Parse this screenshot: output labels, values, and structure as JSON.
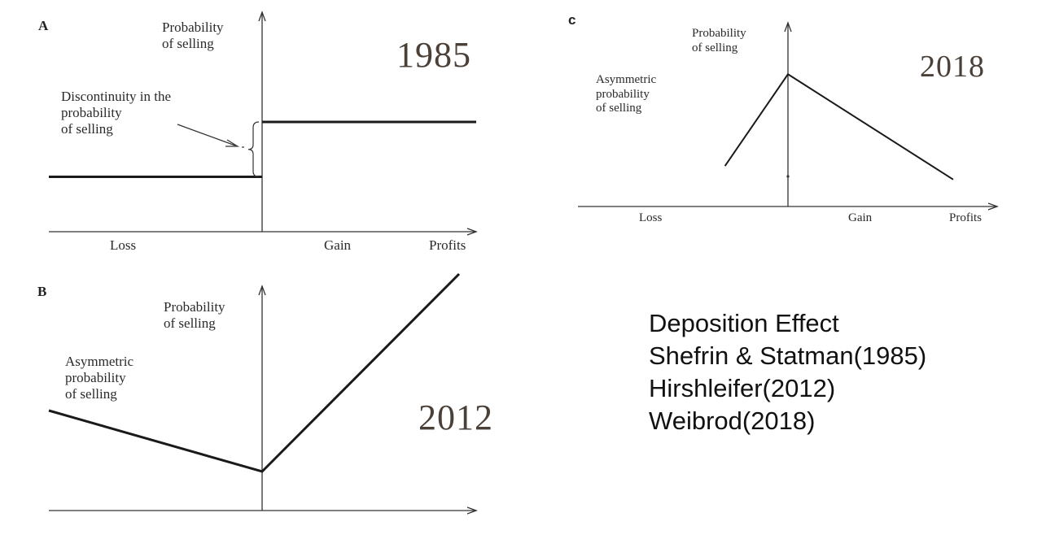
{
  "chart_data": [
    {
      "panel": "A",
      "type": "line",
      "year": "1985",
      "ylabel": "Probability\nof selling",
      "xlabel_left": "Loss",
      "xlabel_mid": "Gain",
      "xlabel_right": "Profits",
      "annotation": "Discontinuity in the\nprobability\nof selling",
      "series": [
        {
          "x": [
            -1,
            0
          ],
          "y": [
            0.3,
            0.3
          ]
        },
        {
          "x": [
            0,
            1
          ],
          "y": [
            0.6,
            0.6
          ]
        }
      ],
      "xlim": [
        -1,
        1
      ],
      "ylim": [
        0,
        1
      ],
      "grid": false,
      "ticks": false
    },
    {
      "panel": "B",
      "type": "line",
      "year": "2012",
      "ylabel": "Probability\nof selling",
      "annotation": "Asymmetric\nprobability\nof selling",
      "series": [
        {
          "x": [
            -1,
            0,
            0.92
          ],
          "y": [
            0.41,
            0.16,
            0.97
          ]
        }
      ],
      "xlim": [
        -1,
        1
      ],
      "ylim": [
        0,
        1
      ],
      "grid": false,
      "ticks": false
    },
    {
      "panel": "C",
      "type": "line",
      "year": "2018",
      "ylabel": "Probability\nof selling",
      "xlabel_left": "Loss",
      "xlabel_mid": "Gain",
      "xlabel_right": "Profits",
      "annotation": "Asymmetric\nprobability\nof selling",
      "series": [
        {
          "x": [
            -0.3,
            0,
            0.79
          ],
          "y": [
            0.3,
            0.98,
            0.2
          ]
        }
      ],
      "xlim": [
        -1,
        1
      ],
      "ylim": [
        0,
        1
      ],
      "grid": false,
      "ticks": false
    }
  ],
  "references": [
    "Deposition Effect",
    "Shefrin & Statman(1985)",
    "Hirshleifer(2012)",
    "Weibrod(2018)"
  ],
  "colors": {
    "line": "#1a1a1a",
    "axis": "#333333",
    "year_text": "#4a4038",
    "text": "#111111"
  }
}
